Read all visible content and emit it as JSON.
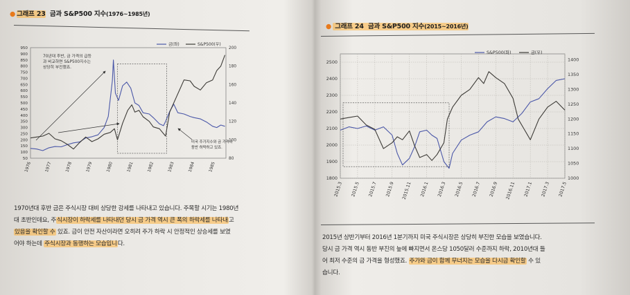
{
  "left_page": {
    "title_prefix": "그래프 23",
    "title_main": "금과 S&P500 지수",
    "title_years": "(1976~1985년)",
    "annotation_top": [
      "70년대 후반, 금 가격의 급등",
      "과 비교하면 S&P500지수는",
      "상당히 부진했죠."
    ],
    "annotation_bottom": [
      "미국 주가지수와 금 가격이",
      "동반 하락하고 있죠."
    ],
    "paragraph": [
      [
        {
          "t": "1970년대 후반 금은 주식시장 대비 상당한 강세를 나타내고 있습니다. 주목할 시기는 1980년",
          "h": false
        }
      ],
      [
        {
          "t": "대 초반인데요, 주",
          "h": false
        },
        {
          "t": "식시장이 하락세를 나타내던 당시 금 가격 역시 큰 폭의 하락세를 나타내",
          "h": true
        },
        {
          "t": "고",
          "h": false
        }
      ],
      [
        {
          "t": "있음을 확인할 수",
          "h": true
        },
        {
          "t": " 있죠. 금이 안전 자산이라면 오히려 주가 하락 시 안정적인 상승세를 보였",
          "h": false
        }
      ],
      [
        {
          "t": "어야 하는데 ",
          "h": false
        },
        {
          "t": "주식시장과 동행하는 모습입니",
          "h": true
        },
        {
          "t": "다.",
          "h": false
        }
      ]
    ]
  },
  "right_page": {
    "title_prefix": "그래프 24",
    "title_main": "금과 S&P500 지수",
    "title_years": "(2015~2016년)",
    "paragraph": [
      [
        {
          "t": "2015년 상반기부터 2016년 1분기까지 미국 주식시장은 상당히 부진한 모습을 보였습니다.",
          "h": false
        }
      ],
      [
        {
          "t": "당시 금 가격 역시 동반 부진의 늪에 빠지면서 온스당 1050달러 수준까지 하락, 2010년대 들",
          "h": false
        }
      ],
      [
        {
          "t": "어 최저 수준의 금 가격을 형성했죠. ",
          "h": false
        },
        {
          "t": "주가와 금이 함께 무너지는 모습을 다시금 확인할",
          "h": true
        },
        {
          "t": " 수 있",
          "h": false
        }
      ],
      [
        {
          "t": "습니다.",
          "h": false
        }
      ]
    ]
  },
  "colors": {
    "gold_series": "#4a57a8",
    "sp_series": "#3c3a36",
    "highlight": "#ffb23c",
    "title_dot": "#e87a1c"
  },
  "chart_data": [
    {
      "type": "line",
      "title": "금과 S&P500 지수(1976~1985년)",
      "xlabel": "",
      "ylabel": "",
      "x": [
        "1976",
        "1977",
        "1978",
        "1979",
        "1980",
        "1981",
        "1982",
        "1983",
        "1984",
        "1985"
      ],
      "y_left_ticks": [
        50,
        100,
        150,
        200,
        250,
        300,
        350,
        400,
        450,
        500,
        550,
        600,
        650,
        700,
        750,
        800,
        850,
        900,
        950
      ],
      "y_right_ticks": [
        80,
        100,
        120,
        140,
        160,
        180,
        200
      ],
      "ylim_left": [
        50,
        950
      ],
      "ylim_right": [
        80,
        200
      ],
      "legend_placement": "top-center",
      "series": [
        {
          "name": "금(좌)",
          "axis": "left",
          "color": "#4a57a8",
          "points": [
            [
              1976.0,
              130
            ],
            [
              1976.3,
              125
            ],
            [
              1976.6,
              112
            ],
            [
              1976.9,
              135
            ],
            [
              1977.2,
              145
            ],
            [
              1977.5,
              143
            ],
            [
              1977.8,
              160
            ],
            [
              1978.1,
              175
            ],
            [
              1978.4,
              183
            ],
            [
              1978.7,
              215
            ],
            [
              1979.0,
              225
            ],
            [
              1979.3,
              240
            ],
            [
              1979.6,
              300
            ],
            [
              1979.8,
              390
            ],
            [
              1980.0,
              680
            ],
            [
              1980.05,
              850
            ],
            [
              1980.15,
              580
            ],
            [
              1980.3,
              520
            ],
            [
              1980.5,
              640
            ],
            [
              1980.7,
              670
            ],
            [
              1980.9,
              620
            ],
            [
              1981.1,
              500
            ],
            [
              1981.3,
              480
            ],
            [
              1981.5,
              420
            ],
            [
              1981.8,
              410
            ],
            [
              1982.0,
              380
            ],
            [
              1982.3,
              330
            ],
            [
              1982.5,
              315
            ],
            [
              1982.6,
              350
            ],
            [
              1982.8,
              430
            ],
            [
              1983.0,
              490
            ],
            [
              1983.2,
              420
            ],
            [
              1983.5,
              410
            ],
            [
              1983.8,
              390
            ],
            [
              1984.0,
              380
            ],
            [
              1984.3,
              370
            ],
            [
              1984.6,
              345
            ],
            [
              1984.9,
              310
            ],
            [
              1985.1,
              300
            ],
            [
              1985.3,
              320
            ],
            [
              1985.5,
              310
            ]
          ]
        },
        {
          "name": "S&P500(우)",
          "axis": "right",
          "color": "#3c3a36",
          "points": [
            [
              1976.0,
              102
            ],
            [
              1976.3,
              103
            ],
            [
              1976.6,
              104
            ],
            [
              1976.9,
              107
            ],
            [
              1977.2,
              101
            ],
            [
              1977.5,
              99
            ],
            [
              1977.8,
              95
            ],
            [
              1978.1,
              90
            ],
            [
              1978.4,
              97
            ],
            [
              1978.7,
              103
            ],
            [
              1979.0,
              98
            ],
            [
              1979.3,
              101
            ],
            [
              1979.6,
              106
            ],
            [
              1979.9,
              108
            ],
            [
              1980.1,
              112
            ],
            [
              1980.25,
              100
            ],
            [
              1980.5,
              118
            ],
            [
              1980.75,
              132
            ],
            [
              1980.95,
              138
            ],
            [
              1981.1,
              130
            ],
            [
              1981.3,
              132
            ],
            [
              1981.5,
              125
            ],
            [
              1981.8,
              120
            ],
            [
              1982.0,
              114
            ],
            [
              1982.3,
              112
            ],
            [
              1982.6,
              104
            ],
            [
              1982.8,
              130
            ],
            [
              1983.0,
              140
            ],
            [
              1983.3,
              155
            ],
            [
              1983.5,
              165
            ],
            [
              1983.8,
              164
            ],
            [
              1984.0,
              158
            ],
            [
              1984.3,
              154
            ],
            [
              1984.6,
              162
            ],
            [
              1984.9,
              165
            ],
            [
              1985.1,
              175
            ],
            [
              1985.3,
              180
            ],
            [
              1985.5,
              192
            ]
          ]
        }
      ]
    },
    {
      "type": "line",
      "title": "금과 S&P500 지수(2015~2016년)",
      "xlabel": "",
      "ylabel": "",
      "x": [
        "2015.3",
        "2015.5",
        "2015.7",
        "2015.9",
        "2015.11",
        "2016.1",
        "2016.3",
        "2016.5",
        "2016.7",
        "2016.9",
        "2016.11",
        "2017.1",
        "2017.3",
        "2017.5"
      ],
      "y_left_ticks": [
        1800,
        1900,
        2000,
        2100,
        2200,
        2300,
        2400,
        2500
      ],
      "y_right_ticks": [
        1000,
        1050,
        1100,
        1150,
        1200,
        1250,
        1300,
        1350,
        1400
      ],
      "ylim_left": [
        1800,
        2550
      ],
      "ylim_right": [
        1000,
        1420
      ],
      "legend_placement": "top-left",
      "series": [
        {
          "name": "S&P500(좌)",
          "axis": "left",
          "color": "#4a57a8",
          "points": [
            [
              0,
              2090
            ],
            [
              0.5,
              2110
            ],
            [
              1,
              2100
            ],
            [
              1.5,
              2115
            ],
            [
              2,
              2090
            ],
            [
              2.5,
              2110
            ],
            [
              3,
              2060
            ],
            [
              3.3,
              1950
            ],
            [
              3.6,
              1880
            ],
            [
              4,
              1920
            ],
            [
              4.3,
              1990
            ],
            [
              4.6,
              2080
            ],
            [
              5,
              2090
            ],
            [
              5.3,
              2060
            ],
            [
              5.6,
              2040
            ],
            [
              6,
              1900
            ],
            [
              6.3,
              1860
            ],
            [
              6.5,
              1950
            ],
            [
              7,
              2030
            ],
            [
              7.5,
              2060
            ],
            [
              8,
              2080
            ],
            [
              8.5,
              2140
            ],
            [
              9,
              2170
            ],
            [
              9.5,
              2160
            ],
            [
              10,
              2140
            ],
            [
              10.5,
              2190
            ],
            [
              11,
              2260
            ],
            [
              11.5,
              2280
            ],
            [
              12,
              2340
            ],
            [
              12.5,
              2390
            ],
            [
              13,
              2400
            ]
          ]
        },
        {
          "name": "금(우)",
          "axis": "right",
          "color": "#3c3a36",
          "points": [
            [
              0,
              1200
            ],
            [
              0.5,
              1205
            ],
            [
              1,
              1210
            ],
            [
              1.5,
              1180
            ],
            [
              2,
              1165
            ],
            [
              2.5,
              1100
            ],
            [
              3,
              1120
            ],
            [
              3.3,
              1140
            ],
            [
              3.6,
              1130
            ],
            [
              4,
              1160
            ],
            [
              4.3,
              1110
            ],
            [
              4.6,
              1070
            ],
            [
              5,
              1080
            ],
            [
              5.3,
              1060
            ],
            [
              5.6,
              1080
            ],
            [
              6,
              1120
            ],
            [
              6.2,
              1200
            ],
            [
              6.5,
              1240
            ],
            [
              7,
              1280
            ],
            [
              7.5,
              1300
            ],
            [
              8,
              1340
            ],
            [
              8.3,
              1320
            ],
            [
              8.6,
              1360
            ],
            [
              9,
              1340
            ],
            [
              9.5,
              1320
            ],
            [
              10,
              1270
            ],
            [
              10.3,
              1200
            ],
            [
              10.6,
              1170
            ],
            [
              11,
              1130
            ],
            [
              11.5,
              1200
            ],
            [
              12,
              1240
            ],
            [
              12.5,
              1260
            ],
            [
              13,
              1230
            ]
          ]
        }
      ]
    }
  ]
}
